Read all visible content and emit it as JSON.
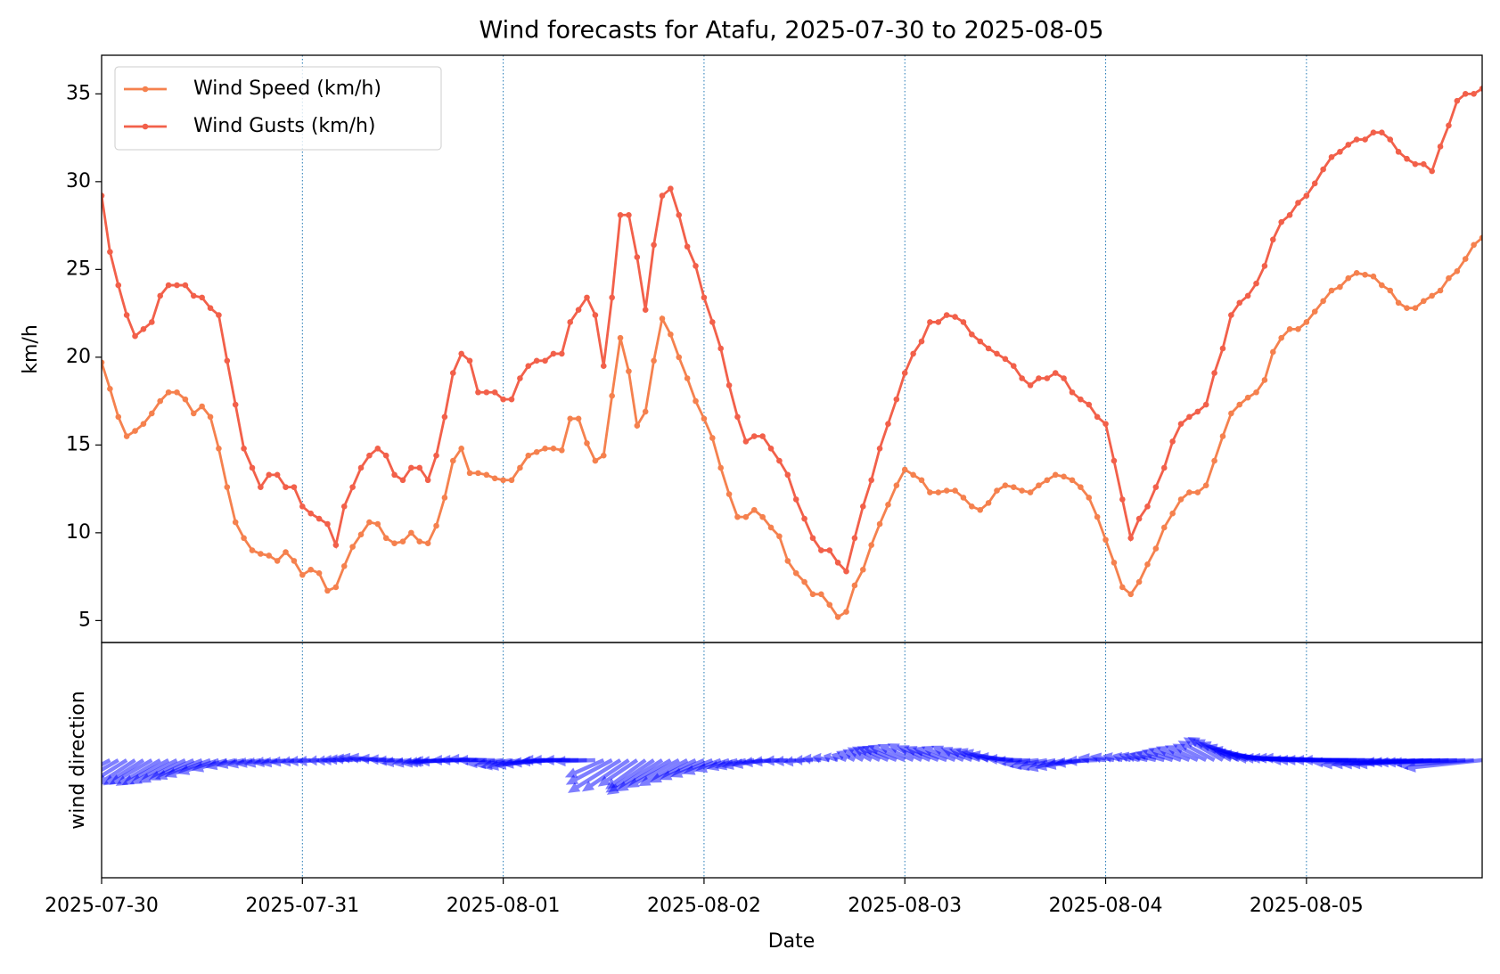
{
  "chart_data": [
    {
      "type": "line",
      "title": "Wind forecasts for Atafu, 2025-07-30 to 2025-08-05",
      "ylabel": "km/h",
      "x": [
        "2025-07-30T00:00",
        "2025-07-30T01:00",
        "2025-07-30T02:00",
        "2025-07-30T03:00",
        "2025-07-30T04:00",
        "2025-07-30T05:00",
        "2025-07-30T06:00",
        "2025-07-30T07:00",
        "2025-07-30T08:00",
        "2025-07-30T09:00",
        "2025-07-30T10:00",
        "2025-07-30T11:00",
        "2025-07-30T12:00",
        "2025-07-30T13:00",
        "2025-07-30T14:00",
        "2025-07-30T15:00",
        "2025-07-30T16:00",
        "2025-07-30T17:00",
        "2025-07-30T18:00",
        "2025-07-30T19:00",
        "2025-07-30T20:00",
        "2025-07-30T21:00",
        "2025-07-30T22:00",
        "2025-07-30T23:00",
        "2025-07-31T00:00",
        "2025-07-31T01:00",
        "2025-07-31T02:00",
        "2025-07-31T03:00",
        "2025-07-31T04:00",
        "2025-07-31T05:00",
        "2025-07-31T06:00",
        "2025-07-31T07:00",
        "2025-07-31T08:00",
        "2025-07-31T09:00",
        "2025-07-31T10:00",
        "2025-07-31T11:00",
        "2025-07-31T12:00",
        "2025-07-31T13:00",
        "2025-07-31T14:00",
        "2025-07-31T15:00",
        "2025-07-31T16:00",
        "2025-07-31T17:00",
        "2025-07-31T18:00",
        "2025-07-31T19:00",
        "2025-07-31T20:00",
        "2025-07-31T21:00",
        "2025-07-31T22:00",
        "2025-07-31T23:00",
        "2025-08-01T00:00",
        "2025-08-01T01:00",
        "2025-08-01T02:00",
        "2025-08-01T03:00",
        "2025-08-01T04:00",
        "2025-08-01T05:00",
        "2025-08-01T06:00",
        "2025-08-01T07:00",
        "2025-08-01T08:00",
        "2025-08-01T09:00",
        "2025-08-01T10:00",
        "2025-08-01T11:00",
        "2025-08-01T12:00",
        "2025-08-01T13:00",
        "2025-08-01T14:00",
        "2025-08-01T15:00",
        "2025-08-01T16:00",
        "2025-08-01T17:00",
        "2025-08-01T18:00",
        "2025-08-01T19:00",
        "2025-08-01T20:00",
        "2025-08-01T21:00",
        "2025-08-01T22:00",
        "2025-08-01T23:00",
        "2025-08-02T00:00",
        "2025-08-02T01:00",
        "2025-08-02T02:00",
        "2025-08-02T03:00",
        "2025-08-02T04:00",
        "2025-08-02T05:00",
        "2025-08-02T06:00",
        "2025-08-02T07:00",
        "2025-08-02T08:00",
        "2025-08-02T09:00",
        "2025-08-02T10:00",
        "2025-08-02T11:00",
        "2025-08-02T12:00",
        "2025-08-02T13:00",
        "2025-08-02T14:00",
        "2025-08-02T15:00",
        "2025-08-02T16:00",
        "2025-08-02T17:00",
        "2025-08-02T18:00",
        "2025-08-02T19:00",
        "2025-08-02T20:00",
        "2025-08-02T21:00",
        "2025-08-02T22:00",
        "2025-08-02T23:00",
        "2025-08-03T00:00",
        "2025-08-03T01:00",
        "2025-08-03T02:00",
        "2025-08-03T03:00",
        "2025-08-03T04:00",
        "2025-08-03T05:00",
        "2025-08-03T06:00",
        "2025-08-03T07:00",
        "2025-08-03T08:00",
        "2025-08-03T09:00",
        "2025-08-03T10:00",
        "2025-08-03T11:00",
        "2025-08-03T12:00",
        "2025-08-03T13:00",
        "2025-08-03T14:00",
        "2025-08-03T15:00",
        "2025-08-03T16:00",
        "2025-08-03T17:00",
        "2025-08-03T18:00",
        "2025-08-03T19:00",
        "2025-08-03T20:00",
        "2025-08-03T21:00",
        "2025-08-03T22:00",
        "2025-08-03T23:00",
        "2025-08-04T00:00",
        "2025-08-04T01:00",
        "2025-08-04T02:00",
        "2025-08-04T03:00",
        "2025-08-04T04:00",
        "2025-08-04T05:00",
        "2025-08-04T06:00",
        "2025-08-04T07:00",
        "2025-08-04T08:00",
        "2025-08-04T09:00",
        "2025-08-04T10:00",
        "2025-08-04T11:00",
        "2025-08-04T12:00",
        "2025-08-04T13:00",
        "2025-08-04T14:00",
        "2025-08-04T15:00",
        "2025-08-04T16:00",
        "2025-08-04T17:00",
        "2025-08-04T18:00",
        "2025-08-04T19:00",
        "2025-08-04T20:00",
        "2025-08-04T21:00",
        "2025-08-04T22:00",
        "2025-08-04T23:00",
        "2025-08-05T00:00",
        "2025-08-05T01:00",
        "2025-08-05T02:00",
        "2025-08-05T03:00",
        "2025-08-05T04:00",
        "2025-08-05T05:00",
        "2025-08-05T06:00",
        "2025-08-05T07:00",
        "2025-08-05T08:00",
        "2025-08-05T09:00",
        "2025-08-05T10:00",
        "2025-08-05T11:00",
        "2025-08-05T12:00",
        "2025-08-05T13:00",
        "2025-08-05T14:00",
        "2025-08-05T15:00",
        "2025-08-05T16:00",
        "2025-08-05T17:00",
        "2025-08-05T18:00",
        "2025-08-05T19:00",
        "2025-08-05T20:00",
        "2025-08-05T21:00"
      ],
      "series": [
        {
          "name": "Wind Speed (km/h)",
          "color": "#f5814e",
          "values": [
            19.7,
            18.2,
            16.6,
            15.5,
            15.8,
            16.2,
            16.8,
            17.5,
            18.0,
            18.0,
            17.6,
            16.8,
            17.2,
            16.6,
            14.8,
            12.6,
            10.6,
            9.7,
            9.0,
            8.8,
            8.7,
            8.4,
            8.9,
            8.4,
            7.6,
            7.9,
            7.7,
            6.7,
            6.9,
            8.1,
            9.2,
            9.9,
            10.6,
            10.5,
            9.7,
            9.4,
            9.5,
            10.0,
            9.5,
            9.4,
            10.4,
            12.0,
            14.1,
            14.8,
            13.4,
            13.4,
            13.3,
            13.1,
            13.0,
            13.0,
            13.7,
            14.4,
            14.6,
            14.8,
            14.8,
            14.7,
            16.5,
            16.5,
            15.1,
            14.1,
            14.4,
            17.8,
            21.1,
            19.2,
            16.1,
            16.9,
            19.8,
            22.2,
            21.3,
            20.0,
            18.8,
            17.5,
            16.5,
            15.4,
            13.7,
            12.2,
            10.9,
            10.9,
            11.3,
            10.9,
            10.3,
            9.8,
            8.4,
            7.7,
            7.2,
            6.5,
            6.5,
            5.9,
            5.2,
            5.5,
            7.0,
            7.9,
            9.3,
            10.5,
            11.6,
            12.7,
            13.6,
            13.3,
            13.0,
            12.3,
            12.3,
            12.4,
            12.4,
            12.0,
            11.5,
            11.3,
            11.7,
            12.4,
            12.7,
            12.6,
            12.4,
            12.3,
            12.7,
            13.0,
            13.3,
            13.2,
            13.0,
            12.6,
            12.0,
            10.9,
            9.6,
            8.3,
            6.9,
            6.5,
            7.2,
            8.2,
            9.1,
            10.3,
            11.1,
            11.9,
            12.3,
            12.3,
            12.7,
            14.1,
            15.5,
            16.8,
            17.3,
            17.7,
            18.0,
            18.7,
            20.3,
            21.1,
            21.6,
            21.6,
            22.0,
            22.6,
            23.2,
            23.8,
            24.0,
            24.5,
            24.8,
            24.7,
            24.6,
            24.1,
            23.8,
            23.1,
            22.8,
            22.8,
            23.2,
            23.5,
            23.8,
            24.5,
            24.9,
            25.6,
            26.4,
            26.8
          ]
        },
        {
          "name": "Wind Gusts (km/h)",
          "color": "#f2604a",
          "values": [
            29.2,
            26.0,
            24.1,
            22.4,
            21.2,
            21.6,
            22.0,
            23.5,
            24.1,
            24.1,
            24.1,
            23.5,
            23.4,
            22.8,
            22.4,
            19.8,
            17.3,
            14.8,
            13.7,
            12.6,
            13.3,
            13.3,
            12.6,
            12.6,
            11.5,
            11.1,
            10.8,
            10.5,
            9.3,
            11.5,
            12.6,
            13.7,
            14.4,
            14.8,
            14.4,
            13.3,
            13.0,
            13.7,
            13.7,
            13.0,
            14.4,
            16.6,
            19.1,
            20.2,
            19.8,
            18.0,
            18.0,
            18.0,
            17.6,
            17.6,
            18.8,
            19.5,
            19.8,
            19.8,
            20.2,
            20.2,
            22.0,
            22.7,
            23.4,
            22.4,
            19.5,
            23.4,
            28.1,
            28.1,
            25.7,
            22.7,
            26.4,
            29.2,
            29.6,
            28.1,
            26.3,
            25.2,
            23.4,
            22.0,
            20.5,
            18.4,
            16.6,
            15.2,
            15.5,
            15.5,
            14.8,
            14.1,
            13.3,
            11.9,
            10.8,
            9.7,
            9.0,
            9.0,
            8.3,
            7.8,
            9.7,
            11.5,
            13.0,
            14.8,
            16.2,
            17.6,
            19.1,
            20.2,
            20.9,
            22.0,
            22.0,
            22.4,
            22.3,
            22.0,
            21.3,
            20.9,
            20.5,
            20.2,
            19.9,
            19.5,
            18.8,
            18.4,
            18.8,
            18.8,
            19.1,
            18.8,
            18.0,
            17.6,
            17.3,
            16.6,
            16.2,
            14.1,
            11.9,
            9.7,
            10.8,
            11.5,
            12.6,
            13.7,
            15.2,
            16.2,
            16.6,
            16.9,
            17.3,
            19.1,
            20.5,
            22.4,
            23.1,
            23.5,
            24.2,
            25.2,
            26.7,
            27.7,
            28.1,
            28.8,
            29.2,
            29.9,
            30.7,
            31.4,
            31.7,
            32.1,
            32.4,
            32.4,
            32.8,
            32.8,
            32.4,
            31.7,
            31.3,
            31.0,
            31.0,
            30.6,
            32.0,
            33.2,
            34.6,
            35.0,
            35.0,
            35.3
          ]
        }
      ],
      "ylim": [
        3.75,
        37.2
      ],
      "yticks": [
        5,
        10,
        15,
        20,
        25,
        30,
        35
      ],
      "legend": "upper left"
    },
    {
      "type": "quiver",
      "ylabel": "wind direction",
      "xlabel": "Date",
      "color": "#0000ff",
      "alpha": 0.5,
      "values": [
        65,
        62,
        60,
        58,
        57,
        58,
        60,
        60,
        62,
        63,
        64,
        66,
        68,
        70,
        72,
        74,
        76,
        78,
        78,
        80,
        80,
        82,
        82,
        84,
        84,
        86,
        86,
        88,
        88,
        90,
        92,
        94,
        96,
        96,
        94,
        92,
        88,
        84,
        82,
        82,
        84,
        86,
        88,
        88,
        90,
        90,
        92,
        90,
        84,
        82,
        80,
        80,
        82,
        84,
        86,
        88,
        90,
        90,
        90,
        88,
        66,
        62,
        58,
        56,
        56,
        54,
        56,
        58,
        60,
        62,
        62,
        64,
        66,
        68,
        70,
        72,
        74,
        76,
        78,
        80,
        84,
        86,
        88,
        86,
        84,
        90,
        96,
        102,
        108,
        112,
        116,
        118,
        118,
        116,
        114,
        112,
        112,
        114,
        116,
        114,
        112,
        110,
        112,
        114,
        112,
        110,
        108,
        104,
        100,
        96,
        92,
        88,
        84,
        80,
        78,
        76,
        78,
        80,
        84,
        88,
        96,
        100,
        104,
        106,
        106,
        104,
        104,
        106,
        108,
        110,
        112,
        114,
        116,
        118,
        120,
        118,
        114,
        110,
        106,
        102,
        98,
        96,
        94,
        92,
        92,
        92,
        92,
        92,
        90,
        90,
        90,
        90,
        90,
        88,
        86,
        86,
        86,
        86,
        86,
        88,
        88,
        88,
        88,
        88,
        86,
        84
      ],
      "xlim": [
        "2025-07-30T00:00",
        "2025-08-05T21:00"
      ],
      "xticks": [
        "2025-07-30",
        "2025-07-31",
        "2025-08-01",
        "2025-08-02",
        "2025-08-03",
        "2025-08-04",
        "2025-08-05"
      ],
      "xgrid": true
    }
  ]
}
